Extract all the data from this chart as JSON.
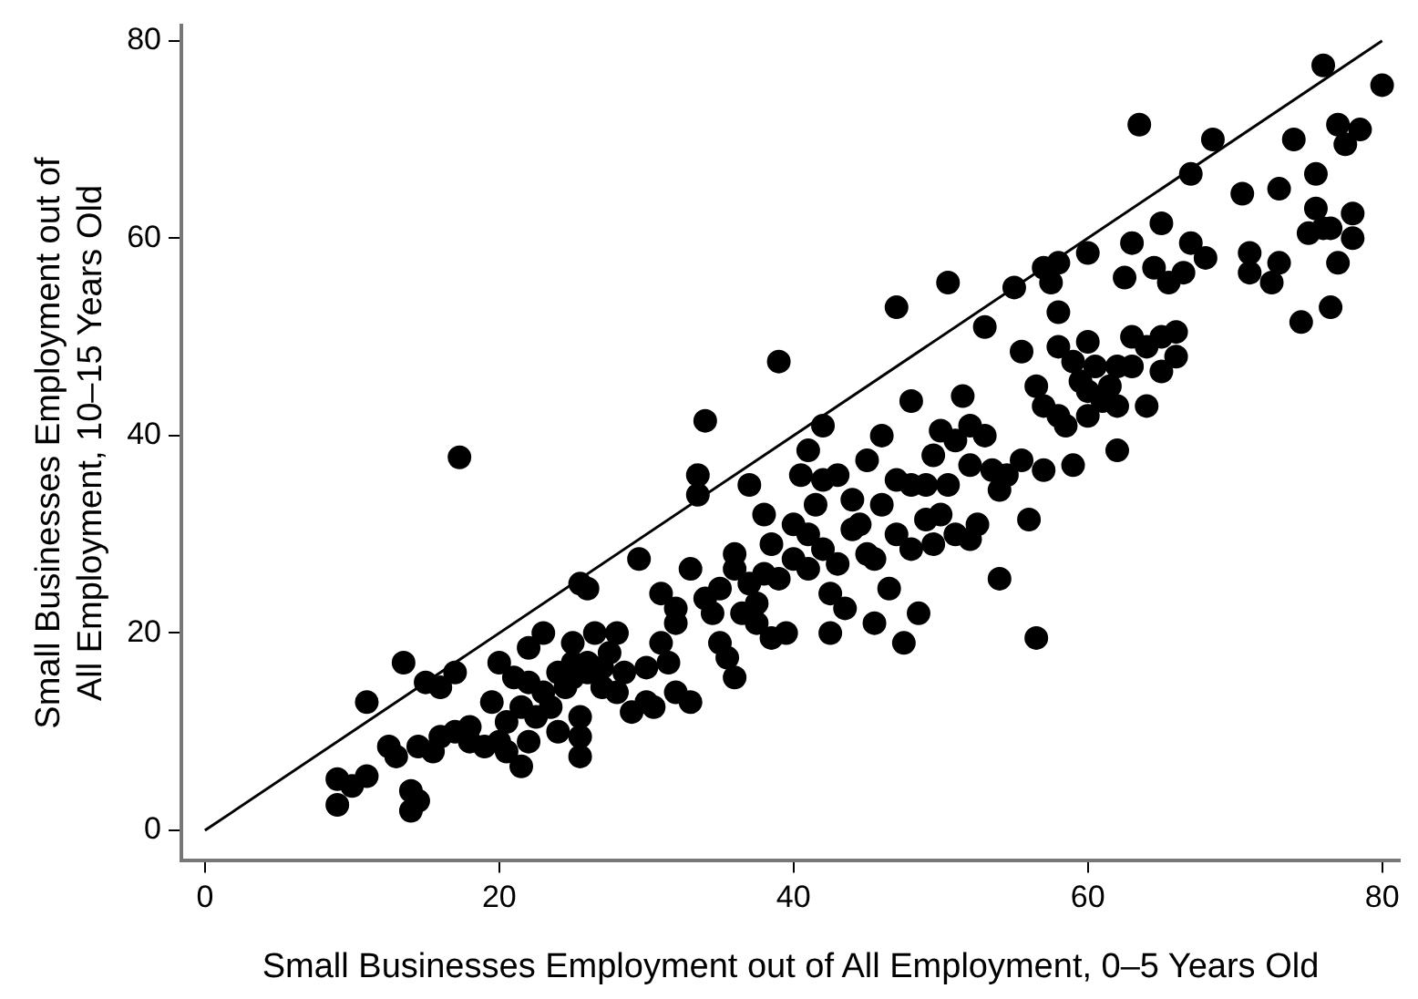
{
  "chart_data": {
    "type": "scatter",
    "xlabel": "Small Businesses Employment out of All Employment, 0–5 Years Old",
    "ylabel": "Small Businesses Employment out of All Employment, 10–15 Years Old",
    "xlim": [
      -1.6,
      81.2
    ],
    "ylim": [
      -3,
      81.5
    ],
    "xticks": [
      0,
      20,
      40,
      60,
      80
    ],
    "yticks": [
      0,
      20,
      40,
      60,
      80
    ],
    "grid": false,
    "legend": false,
    "marker": "circle",
    "series": [
      {
        "color": "#000000",
        "x": [
          9,
          9,
          10,
          11,
          11,
          12.5,
          13,
          13.5,
          14,
          14,
          14.5,
          14.5,
          15,
          15.5,
          16,
          16,
          17,
          17,
          17.3,
          18,
          18,
          19,
          19.5,
          20,
          20,
          20.5,
          20.5,
          21,
          21.5,
          21.5,
          22,
          22,
          22,
          22.5,
          23,
          23,
          23.5,
          24,
          24,
          24.5,
          25,
          25,
          25,
          25.5,
          25.5,
          25.5,
          25.5,
          26,
          26,
          26,
          26.5,
          27,
          27,
          27.5,
          28,
          28,
          28.5,
          29,
          29.5,
          30,
          30,
          30.5,
          31,
          31,
          31.5,
          32,
          32,
          32,
          33,
          33,
          33.5,
          33.5,
          34,
          34,
          34.5,
          35,
          35,
          35.5,
          36,
          36,
          36,
          36.5,
          37,
          37,
          37.5,
          37.5,
          38,
          38,
          38.5,
          38.5,
          39,
          39,
          39.5,
          40,
          40,
          40.5,
          41,
          41,
          41,
          41.5,
          42,
          42,
          42,
          42.5,
          42.5,
          43,
          43,
          43.5,
          44,
          44,
          44.5,
          45,
          45,
          45.5,
          45.5,
          46,
          46,
          46.5,
          47,
          47,
          47,
          47.5,
          48,
          48,
          48,
          48.5,
          49,
          49,
          49.5,
          49.5,
          50,
          50,
          50.5,
          50.5,
          51,
          51,
          51.5,
          52,
          52,
          52,
          52.5,
          53,
          53,
          53.5,
          54,
          54,
          54.5,
          55,
          55.5,
          55.5,
          56,
          56.5,
          56.5,
          57,
          57,
          57,
          57.5,
          58,
          58,
          58,
          58,
          58.5,
          59,
          59,
          59.5,
          60,
          60,
          60,
          60,
          60.5,
          61,
          61.5,
          62,
          62,
          62,
          62.5,
          63,
          63,
          63,
          63.5,
          64,
          64,
          64.5,
          65,
          65,
          65,
          65.5,
          66,
          66,
          66.5,
          67,
          67,
          68,
          68.5,
          70.5,
          71,
          71,
          72.5,
          73,
          73,
          74,
          74.5,
          75,
          75.5,
          75.5,
          76,
          76,
          76.5,
          76.5,
          77,
          77,
          77.5,
          78,
          78,
          78.5,
          80
        ],
        "values": [
          5.2,
          2.6,
          4.5,
          5.5,
          13,
          8.5,
          7.5,
          17,
          4,
          2,
          8.5,
          3,
          15,
          8,
          9.5,
          14.5,
          10,
          16,
          37.8,
          9,
          10.5,
          8.5,
          13,
          17,
          9,
          8,
          11,
          15.5,
          6.5,
          12.5,
          15,
          18.5,
          9,
          11.5,
          14,
          20,
          12.5,
          10,
          16,
          14.5,
          17,
          19,
          15.5,
          25,
          11.5,
          9.5,
          7.5,
          24.5,
          17,
          16,
          20,
          14.5,
          16.5,
          18,
          20,
          14,
          16,
          12,
          27.5,
          13,
          16.5,
          12.5,
          24,
          19,
          17,
          22.5,
          21,
          14,
          26.5,
          13,
          36,
          34,
          41.5,
          23.5,
          22,
          24.5,
          19,
          17.5,
          28,
          26.5,
          15.5,
          22,
          35,
          25,
          21,
          23,
          32,
          26,
          29,
          19.5,
          47.5,
          25.5,
          20,
          27.5,
          31,
          36,
          38.5,
          30,
          26.5,
          33,
          41,
          28.5,
          35.5,
          24,
          20,
          36,
          27,
          22.5,
          30.5,
          33.5,
          31,
          37.5,
          28,
          27.5,
          21,
          40,
          33,
          24.5,
          53,
          35.5,
          30,
          19,
          43.5,
          35,
          28.5,
          22,
          35,
          31.5,
          38,
          29,
          40.5,
          32,
          55.5,
          35,
          39.5,
          30,
          44,
          41,
          37,
          29.5,
          31,
          51,
          40,
          36.5,
          25.5,
          34.5,
          36,
          55,
          48.5,
          37.5,
          31.5,
          45,
          19.5,
          57,
          43,
          36.5,
          55.5,
          57.5,
          52.5,
          49,
          42,
          41,
          37,
          47.5,
          45.5,
          58.5,
          49.5,
          44.5,
          42,
          47,
          43.5,
          45,
          47,
          43,
          38.5,
          56,
          59.5,
          50,
          47,
          71.5,
          49,
          43,
          57,
          61.5,
          50,
          46.5,
          55.5,
          50.5,
          48,
          56.5,
          59.5,
          66.5,
          58,
          70,
          64.5,
          58.5,
          56.5,
          55.5,
          65,
          57.5,
          70,
          51.5,
          60.5,
          66.5,
          63,
          77.5,
          61,
          61,
          53,
          71.5,
          57.5,
          69.5,
          62.5,
          60,
          71,
          75.5
        ]
      },
      {
        "type": "line",
        "color": "#000000",
        "marker": "none",
        "x": [
          0,
          80
        ],
        "values": [
          0,
          80
        ]
      }
    ]
  }
}
